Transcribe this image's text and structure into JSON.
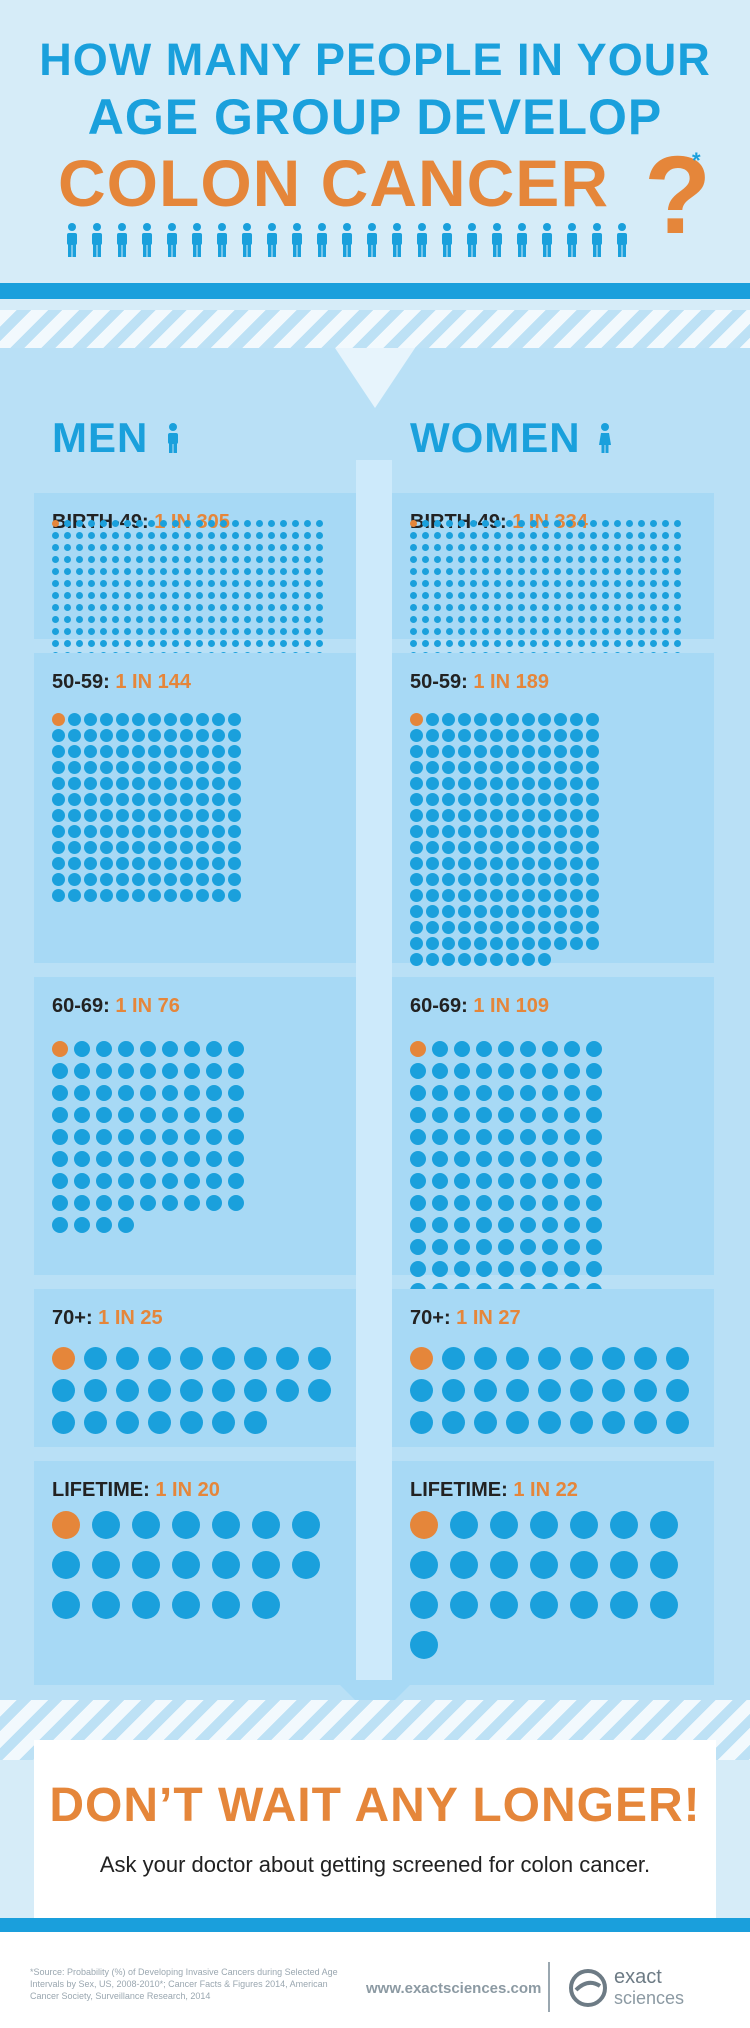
{
  "header": {
    "line1": "HOW MANY PEOPLE IN YOUR",
    "line2": "AGE GROUP DEVELOP",
    "line3": "COLON CANCER",
    "question_mark": "?",
    "asterisk": "*"
  },
  "genders": {
    "men": "MEN",
    "women": "WOMEN"
  },
  "chart_data": {
    "type": "table",
    "rows": [
      {
        "age_group": "BIRTH-49",
        "men": {
          "text": "1 IN 305",
          "n": 305
        },
        "women": {
          "text": "1 IN 334",
          "n": 334
        }
      },
      {
        "age_group": "50-59",
        "men": {
          "text": "1 IN 144",
          "n": 144
        },
        "women": {
          "text": "1 IN 189",
          "n": 189
        }
      },
      {
        "age_group": "60-69",
        "men": {
          "text": "1 IN 76",
          "n": 76
        },
        "women": {
          "text": "1 IN 109",
          "n": 109
        }
      },
      {
        "age_group": "70+",
        "men": {
          "text": "1 IN 25",
          "n": 25
        },
        "women": {
          "text": "1 IN 27",
          "n": 27
        }
      },
      {
        "age_group": "LIFETIME",
        "men": {
          "text": "1 IN 20",
          "n": 20
        },
        "women": {
          "text": "1 IN 22",
          "n": 22
        }
      }
    ]
  },
  "cta": {
    "headline": "DON’T WAIT ANY LONGER!",
    "subline": "Ask your doctor about getting screened for colon cancer."
  },
  "footer": {
    "source": "*Source: Probability (%) of Developing Invasive Cancers during Selected Age Intervals by Sex, US, 2008-2010*; Cancer Facts & Figures 2014, American Cancer Society, Surveillance Research, 2014",
    "url": "www.exactsciences.com",
    "logo_line1": "exact",
    "logo_line2": "sciences"
  },
  "colors": {
    "blue": "#1aa0dc",
    "orange": "#e5863a",
    "panel": "#a7d9f5",
    "background": "#d6ecf8"
  }
}
